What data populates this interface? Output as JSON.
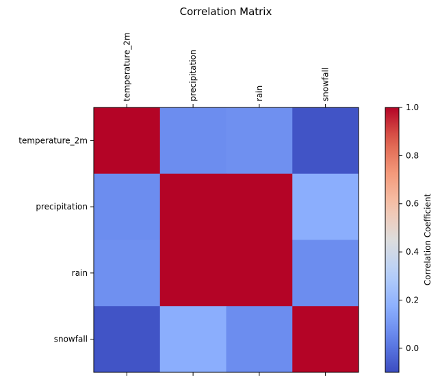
{
  "chart_data": {
    "type": "heatmap",
    "title": "Correlation Matrix",
    "x_categories": [
      "temperature_2m",
      "precipitation",
      "rain",
      "snowfall"
    ],
    "y_categories": [
      "temperature_2m",
      "precipitation",
      "rain",
      "snowfall"
    ],
    "values": [
      [
        1.0,
        0.07,
        0.08,
        -0.08
      ],
      [
        0.07,
        1.0,
        1.0,
        0.17
      ],
      [
        0.08,
        1.0,
        1.0,
        0.07
      ],
      [
        -0.08,
        0.17,
        0.07,
        1.0
      ]
    ],
    "colormap": "coolwarm",
    "vmin": -0.1,
    "vmax": 1.0,
    "colorbar": {
      "label": "Correlation Coefficient",
      "ticks": [
        "0.0",
        "0.2",
        "0.4",
        "0.6",
        "0.8",
        "1.0"
      ]
    }
  }
}
